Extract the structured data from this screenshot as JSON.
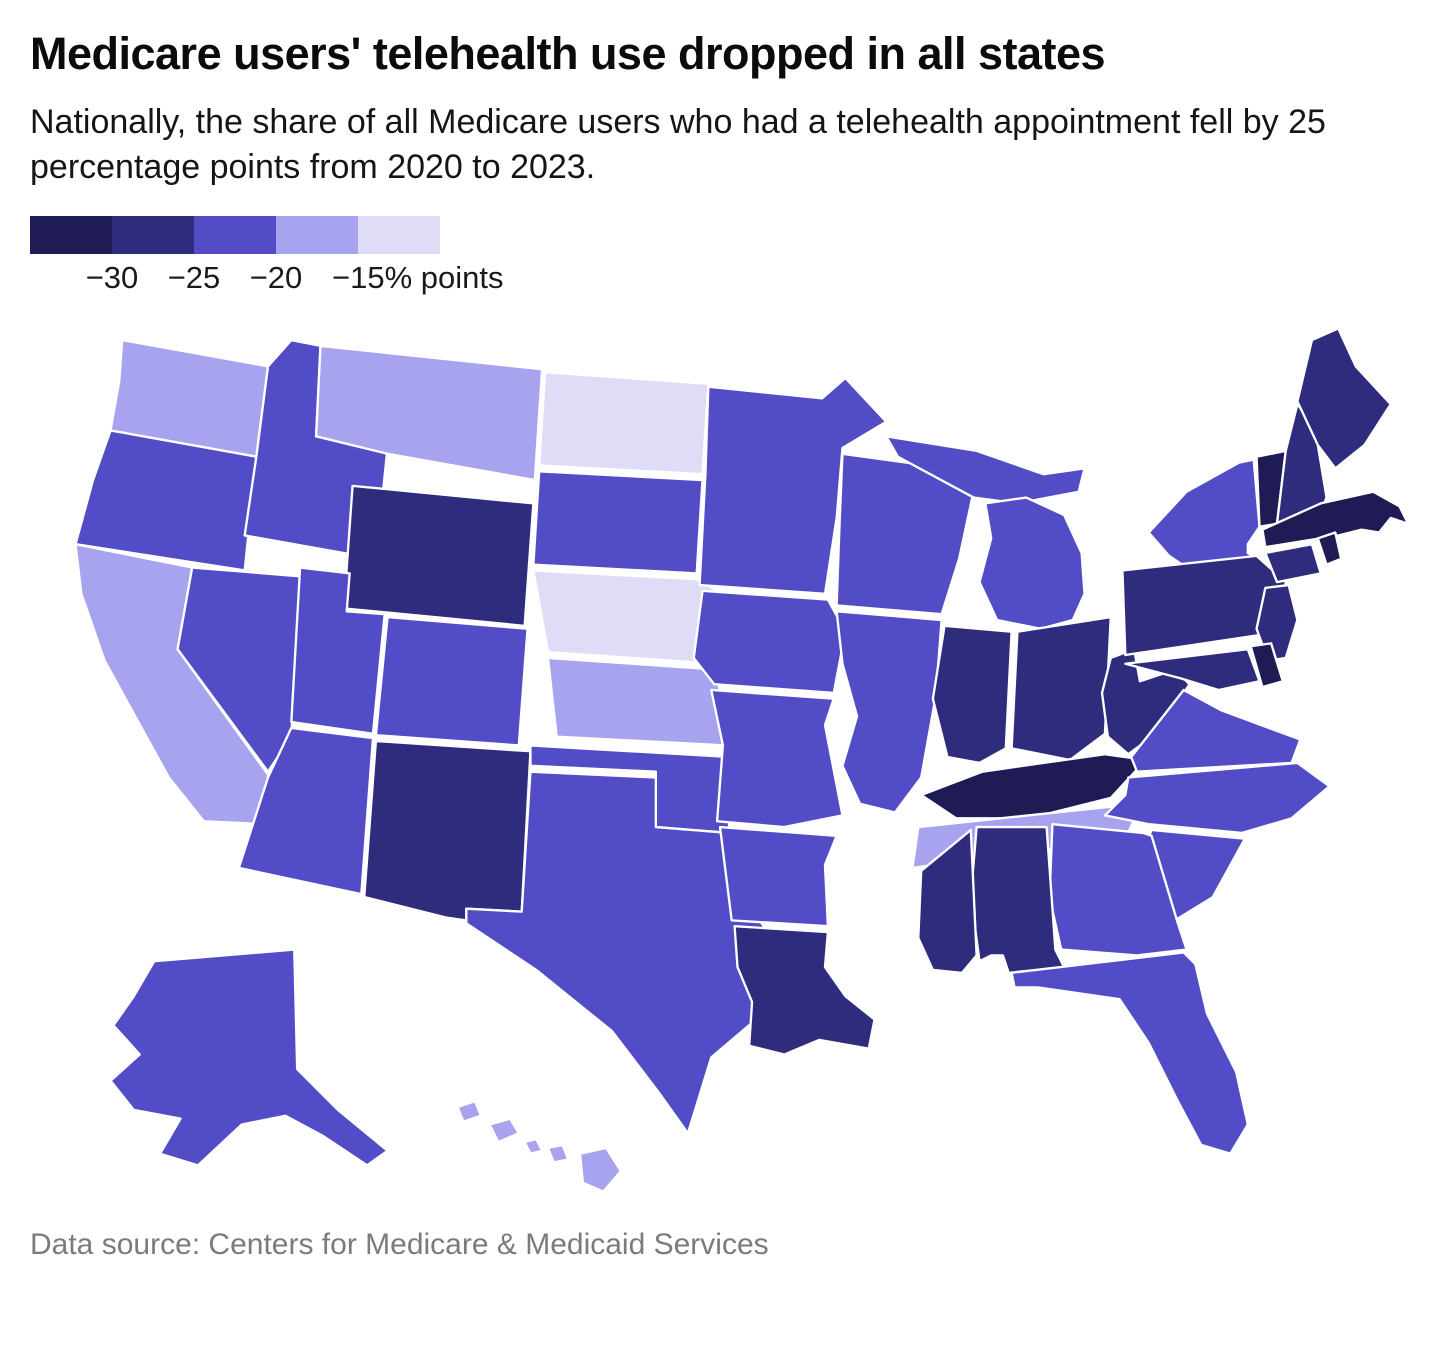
{
  "header": {
    "title": "Medicare users' telehealth use dropped in all states",
    "subtitle": "Nationally, the share of all Medicare users who had a telehealth appointment fell by 25 percentage points from 2020 to 2023."
  },
  "footer": {
    "source": "Data source: Centers for Medicare & Medicaid Services"
  },
  "chart_data": {
    "type": "choropleth",
    "geography": "United States, by state (Alaska and Hawaii inset)",
    "title": "Medicare users' telehealth use dropped in all states",
    "metric": "Change in share of all Medicare users who had a telehealth appointment, 2020 to 2023, percentage points",
    "national_change_pct_points": -25,
    "legend": {
      "tick_labels": [
        "−30",
        "−25",
        "−20",
        "−15% points"
      ],
      "bins": [
        {
          "range": "−30 or steeper",
          "color": "#1e1b55"
        },
        {
          "range": "−30 to −25",
          "color": "#2f2c7d"
        },
        {
          "range": "−25 to −20",
          "color": "#524dc6"
        },
        {
          "range": "−20 to −15",
          "color": "#a8a3ee"
        },
        {
          "range": "−15 or smaller",
          "color": "#dedcf7"
        }
      ]
    },
    "states": [
      {
        "id": "WA",
        "name": "Washington",
        "bin": 3
      },
      {
        "id": "OR",
        "name": "Oregon",
        "bin": 2
      },
      {
        "id": "CA",
        "name": "California",
        "bin": 3
      },
      {
        "id": "NV",
        "name": "Nevada",
        "bin": 2
      },
      {
        "id": "ID",
        "name": "Idaho",
        "bin": 2
      },
      {
        "id": "MT",
        "name": "Montana",
        "bin": 3
      },
      {
        "id": "WY",
        "name": "Wyoming",
        "bin": 1
      },
      {
        "id": "UT",
        "name": "Utah",
        "bin": 2
      },
      {
        "id": "CO",
        "name": "Colorado",
        "bin": 2
      },
      {
        "id": "AZ",
        "name": "Arizona",
        "bin": 2
      },
      {
        "id": "NM",
        "name": "New Mexico",
        "bin": 1
      },
      {
        "id": "ND",
        "name": "North Dakota",
        "bin": 4
      },
      {
        "id": "SD",
        "name": "South Dakota",
        "bin": 2
      },
      {
        "id": "NE",
        "name": "Nebraska",
        "bin": 4
      },
      {
        "id": "KS",
        "name": "Kansas",
        "bin": 3
      },
      {
        "id": "OK",
        "name": "Oklahoma",
        "bin": 2
      },
      {
        "id": "TX",
        "name": "Texas",
        "bin": 2
      },
      {
        "id": "MN",
        "name": "Minnesota",
        "bin": 2
      },
      {
        "id": "IA",
        "name": "Iowa",
        "bin": 2
      },
      {
        "id": "MO",
        "name": "Missouri",
        "bin": 2
      },
      {
        "id": "AR",
        "name": "Arkansas",
        "bin": 2
      },
      {
        "id": "LA",
        "name": "Louisiana",
        "bin": 1
      },
      {
        "id": "WI",
        "name": "Wisconsin",
        "bin": 2
      },
      {
        "id": "IL",
        "name": "Illinois",
        "bin": 2
      },
      {
        "id": "MI",
        "name": "Michigan",
        "bin": 2
      },
      {
        "id": "IN",
        "name": "Indiana",
        "bin": 1
      },
      {
        "id": "OH",
        "name": "Ohio",
        "bin": 1
      },
      {
        "id": "KY",
        "name": "Kentucky",
        "bin": 0
      },
      {
        "id": "TN",
        "name": "Tennessee",
        "bin": 3
      },
      {
        "id": "MS",
        "name": "Mississippi",
        "bin": 1
      },
      {
        "id": "AL",
        "name": "Alabama",
        "bin": 1
      },
      {
        "id": "GA",
        "name": "Georgia",
        "bin": 2
      },
      {
        "id": "FL",
        "name": "Florida",
        "bin": 2
      },
      {
        "id": "SC",
        "name": "South Carolina",
        "bin": 2
      },
      {
        "id": "NC",
        "name": "North Carolina",
        "bin": 2
      },
      {
        "id": "VA",
        "name": "Virginia",
        "bin": 2
      },
      {
        "id": "WV",
        "name": "West Virginia",
        "bin": 1
      },
      {
        "id": "MD",
        "name": "Maryland",
        "bin": 1
      },
      {
        "id": "DE",
        "name": "Delaware",
        "bin": 0
      },
      {
        "id": "NJ",
        "name": "New Jersey",
        "bin": 1
      },
      {
        "id": "PA",
        "name": "Pennsylvania",
        "bin": 1
      },
      {
        "id": "NY",
        "name": "New York",
        "bin": 2
      },
      {
        "id": "CT",
        "name": "Connecticut",
        "bin": 1
      },
      {
        "id": "RI",
        "name": "Rhode Island",
        "bin": 0
      },
      {
        "id": "MA",
        "name": "Massachusetts",
        "bin": 0
      },
      {
        "id": "VT",
        "name": "Vermont",
        "bin": 0
      },
      {
        "id": "NH",
        "name": "New Hampshire",
        "bin": 1
      },
      {
        "id": "ME",
        "name": "Maine",
        "bin": 1
      },
      {
        "id": "AK",
        "name": "Alaska",
        "bin": 2
      },
      {
        "id": "HI",
        "name": "Hawaii",
        "bin": 3
      }
    ]
  }
}
